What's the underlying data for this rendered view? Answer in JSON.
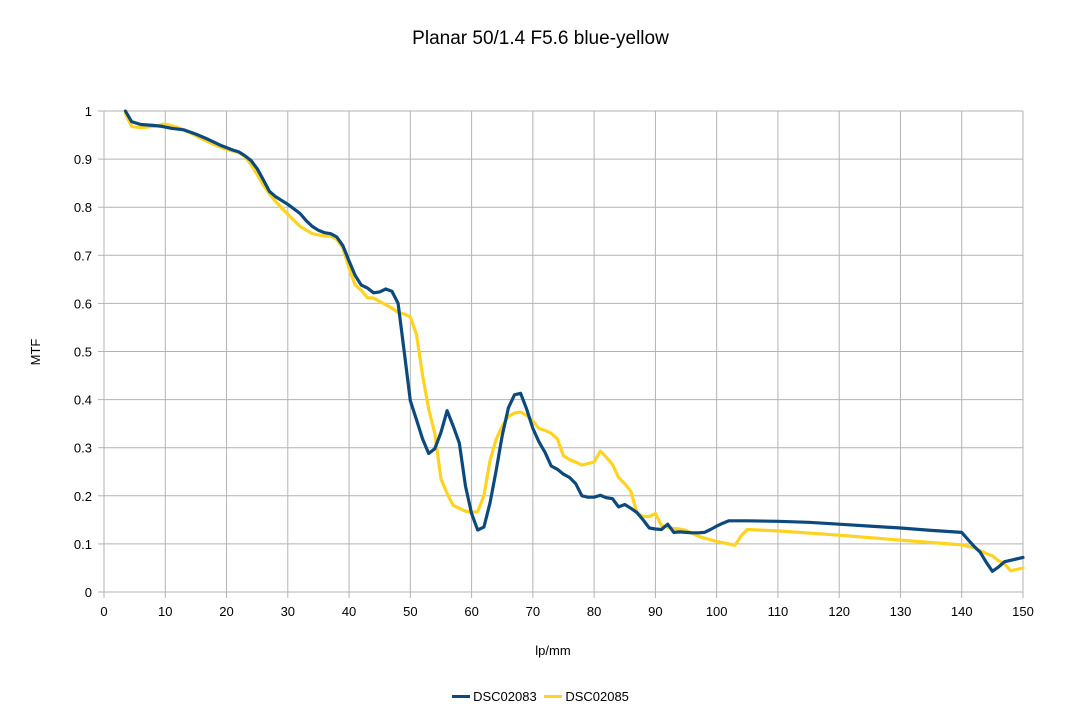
{
  "chart_data": {
    "type": "line",
    "title": "Planar 50/1.4 F5.6 blue-yellow",
    "xlabel": "lp/mm",
    "ylabel": "MTF",
    "xlim": [
      0,
      150
    ],
    "ylim": [
      0,
      1
    ],
    "x_ticks": [
      0,
      10,
      20,
      30,
      40,
      50,
      60,
      70,
      80,
      90,
      100,
      110,
      120,
      130,
      140,
      150
    ],
    "y_ticks": [
      0,
      0.1,
      0.2,
      0.3,
      0.4,
      0.5,
      0.6,
      0.7,
      0.8,
      0.9,
      1
    ],
    "grid": true,
    "legend_position": "bottom",
    "series": [
      {
        "name": "DSC02083",
        "color": "#0c4a7e",
        "x": [
          3.5,
          4.5,
          6,
          8,
          9.5,
          11,
          13,
          15,
          17,
          19,
          21,
          22,
          23,
          24,
          25,
          26,
          27,
          28,
          30,
          32,
          33,
          34,
          35,
          36,
          37,
          38,
          39,
          40,
          41,
          42,
          43,
          44,
          45,
          46,
          47,
          48,
          49,
          50,
          51,
          52,
          53,
          54,
          55,
          56,
          57,
          58,
          59,
          60,
          61,
          62,
          63,
          64,
          65,
          66,
          67,
          68,
          69,
          70,
          71,
          72,
          73,
          74,
          75,
          76,
          77,
          78,
          79,
          80,
          81,
          82,
          83,
          84,
          85,
          86,
          87,
          88,
          89,
          90,
          91,
          92,
          93,
          94,
          95,
          96,
          97,
          98,
          99,
          100,
          101,
          102,
          103,
          105,
          110,
          115,
          120,
          125,
          130,
          135,
          140,
          142,
          143,
          144,
          145,
          146,
          147,
          148,
          150
        ],
        "y": [
          1.0,
          0.978,
          0.972,
          0.97,
          0.968,
          0.964,
          0.961,
          0.952,
          0.941,
          0.929,
          0.919,
          0.915,
          0.907,
          0.897,
          0.88,
          0.857,
          0.833,
          0.822,
          0.806,
          0.787,
          0.772,
          0.76,
          0.752,
          0.747,
          0.745,
          0.738,
          0.72,
          0.688,
          0.658,
          0.638,
          0.632,
          0.622,
          0.624,
          0.63,
          0.625,
          0.6,
          0.5,
          0.398,
          0.358,
          0.318,
          0.288,
          0.298,
          0.332,
          0.377,
          0.345,
          0.31,
          0.22,
          0.163,
          0.129,
          0.135,
          0.185,
          0.252,
          0.325,
          0.383,
          0.41,
          0.413,
          0.38,
          0.34,
          0.312,
          0.29,
          0.262,
          0.255,
          0.245,
          0.238,
          0.225,
          0.2,
          0.197,
          0.197,
          0.201,
          0.196,
          0.194,
          0.177,
          0.182,
          0.174,
          0.165,
          0.15,
          0.133,
          0.131,
          0.13,
          0.141,
          0.124,
          0.125,
          0.124,
          0.123,
          0.123,
          0.124,
          0.13,
          0.137,
          0.143,
          0.148,
          0.148,
          0.148,
          0.147,
          0.145,
          0.141,
          0.137,
          0.133,
          0.128,
          0.124,
          0.095,
          0.083,
          0.062,
          0.043,
          0.052,
          0.063,
          0.066,
          0.072
        ]
      },
      {
        "name": "DSC02085",
        "color": "#ffd320",
        "x": [
          3.5,
          4.5,
          6,
          8,
          10,
          12,
          14,
          16,
          18,
          20,
          22,
          23,
          24,
          25,
          26,
          27,
          28,
          30,
          32,
          34,
          36,
          37,
          38,
          39,
          40,
          41,
          42,
          43,
          44,
          45,
          46,
          47,
          48,
          49,
          50,
          51,
          52,
          53,
          54,
          55,
          56,
          57,
          58,
          59,
          60,
          61,
          62,
          63,
          64,
          65,
          66,
          67,
          68,
          69,
          70,
          71,
          72,
          73,
          74,
          75,
          76,
          77,
          78,
          79,
          80,
          81,
          82,
          83,
          84,
          85,
          86,
          87,
          88,
          89,
          90,
          91,
          92,
          93,
          94,
          95,
          96,
          97,
          98,
          100,
          102,
          103,
          104,
          105,
          110,
          120,
          130,
          140,
          142,
          144,
          145,
          146,
          147,
          148,
          150
        ],
        "y": [
          0.995,
          0.968,
          0.965,
          0.968,
          0.973,
          0.966,
          0.955,
          0.942,
          0.93,
          0.92,
          0.914,
          0.905,
          0.889,
          0.868,
          0.846,
          0.828,
          0.812,
          0.785,
          0.76,
          0.745,
          0.74,
          0.74,
          0.733,
          0.715,
          0.673,
          0.638,
          0.627,
          0.612,
          0.611,
          0.604,
          0.597,
          0.59,
          0.581,
          0.578,
          0.572,
          0.535,
          0.45,
          0.38,
          0.33,
          0.235,
          0.205,
          0.18,
          0.174,
          0.168,
          0.166,
          0.167,
          0.2,
          0.273,
          0.317,
          0.345,
          0.365,
          0.372,
          0.374,
          0.367,
          0.355,
          0.34,
          0.336,
          0.33,
          0.318,
          0.283,
          0.275,
          0.27,
          0.264,
          0.267,
          0.27,
          0.293,
          0.28,
          0.265,
          0.238,
          0.225,
          0.209,
          0.165,
          0.157,
          0.157,
          0.163,
          0.138,
          0.135,
          0.132,
          0.131,
          0.128,
          0.122,
          0.116,
          0.112,
          0.105,
          0.1,
          0.097,
          0.117,
          0.13,
          0.127,
          0.118,
          0.108,
          0.098,
          0.092,
          0.08,
          0.075,
          0.065,
          0.058,
          0.044,
          0.05
        ]
      }
    ]
  }
}
